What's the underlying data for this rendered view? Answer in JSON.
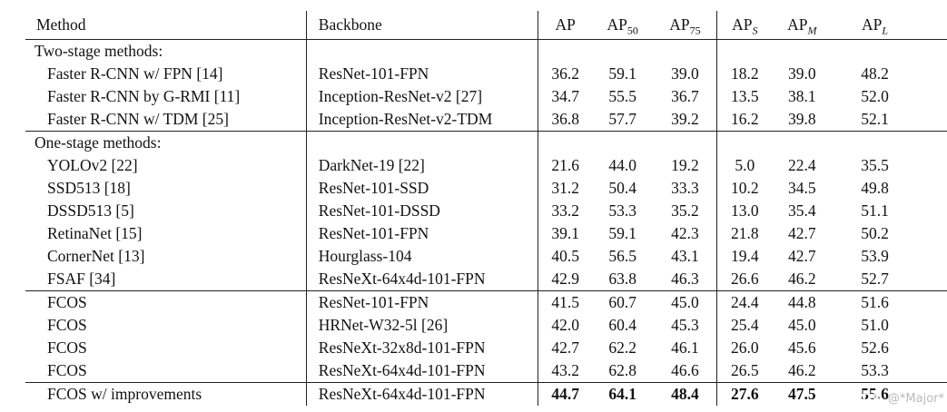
{
  "page": {
    "background": "#ffffff",
    "text_color": "#121212",
    "rule_color": "#222222"
  },
  "watermark": {
    "brand": "CSDN",
    "handle": "@*Major*",
    "handle_color": "#b9b9b9"
  },
  "table": {
    "headers": [
      {
        "key": "method",
        "label": "Method"
      },
      {
        "key": "backbone",
        "label": "Backbone"
      },
      {
        "key": "ap",
        "label": "AP"
      },
      {
        "key": "ap50",
        "label": "AP",
        "sub": "50"
      },
      {
        "key": "ap75",
        "label": "AP",
        "sub": "75"
      },
      {
        "key": "aps",
        "label": "AP",
        "sub": "S",
        "sub_italic": true
      },
      {
        "key": "apm",
        "label": "AP",
        "sub": "M",
        "sub_italic": true
      },
      {
        "key": "apl",
        "label": "AP",
        "sub": "L",
        "sub_italic": true
      }
    ],
    "rows": [
      {
        "type": "section",
        "label": "Two-stage methods:"
      },
      {
        "type": "row",
        "method": "Faster R-CNN w/ FPN [14]",
        "backbone": "ResNet-101-FPN",
        "values": [
          "36.2",
          "59.1",
          "39.0",
          "18.2",
          "39.0",
          "48.2"
        ]
      },
      {
        "type": "row",
        "method": "Faster R-CNN by G-RMI [11]",
        "backbone": "Inception-ResNet-v2 [27]",
        "values": [
          "34.7",
          "55.5",
          "36.7",
          "13.5",
          "38.1",
          "52.0"
        ]
      },
      {
        "type": "row",
        "method": "Faster R-CNN w/ TDM [25]",
        "backbone": "Inception-ResNet-v2-TDM",
        "values": [
          "36.8",
          "57.7",
          "39.2",
          "16.2",
          "39.8",
          "52.1"
        ],
        "rule_below": true
      },
      {
        "type": "section",
        "label": "One-stage methods:"
      },
      {
        "type": "row",
        "method": "YOLOv2 [22]",
        "backbone": "DarkNet-19 [22]",
        "values": [
          "21.6",
          "44.0",
          "19.2",
          "5.0",
          "22.4",
          "35.5"
        ]
      },
      {
        "type": "row",
        "method": "SSD513 [18]",
        "backbone": "ResNet-101-SSD",
        "values": [
          "31.2",
          "50.4",
          "33.3",
          "10.2",
          "34.5",
          "49.8"
        ]
      },
      {
        "type": "row",
        "method": "DSSD513 [5]",
        "backbone": "ResNet-101-DSSD",
        "values": [
          "33.2",
          "53.3",
          "35.2",
          "13.0",
          "35.4",
          "51.1"
        ]
      },
      {
        "type": "row",
        "method": "RetinaNet [15]",
        "backbone": "ResNet-101-FPN",
        "values": [
          "39.1",
          "59.1",
          "42.3",
          "21.8",
          "42.7",
          "50.2"
        ]
      },
      {
        "type": "row",
        "method": "CornerNet [13]",
        "backbone": "Hourglass-104",
        "values": [
          "40.5",
          "56.5",
          "43.1",
          "19.4",
          "42.7",
          "53.9"
        ]
      },
      {
        "type": "row",
        "method": "FSAF [34]",
        "backbone": "ResNeXt-64x4d-101-FPN",
        "values": [
          "42.9",
          "63.8",
          "46.3",
          "26.6",
          "46.2",
          "52.7"
        ],
        "rule_below": true
      },
      {
        "type": "row",
        "method": "FCOS",
        "backbone": "ResNet-101-FPN",
        "values": [
          "41.5",
          "60.7",
          "45.0",
          "24.4",
          "44.8",
          "51.6"
        ]
      },
      {
        "type": "row",
        "method": "FCOS",
        "backbone": "HRNet-W32-5l [26]",
        "values": [
          "42.0",
          "60.4",
          "45.3",
          "25.4",
          "45.0",
          "51.0"
        ]
      },
      {
        "type": "row",
        "method": "FCOS",
        "backbone": "ResNeXt-32x8d-101-FPN",
        "values": [
          "42.7",
          "62.2",
          "46.1",
          "26.0",
          "45.6",
          "52.6"
        ]
      },
      {
        "type": "row",
        "method": "FCOS",
        "backbone": "ResNeXt-64x4d-101-FPN",
        "values": [
          "43.2",
          "62.8",
          "46.6",
          "26.5",
          "46.2",
          "53.3"
        ],
        "rule_below": true
      },
      {
        "type": "row",
        "method": "FCOS w/ improvements",
        "backbone": "ResNeXt-64x4d-101-FPN",
        "values": [
          "44.7",
          "64.1",
          "48.4",
          "27.6",
          "47.5",
          "55.6"
        ],
        "bold_values": true
      }
    ],
    "value_keys": [
      "ap",
      "ap50",
      "ap75",
      "aps",
      "apm",
      "apl"
    ]
  }
}
